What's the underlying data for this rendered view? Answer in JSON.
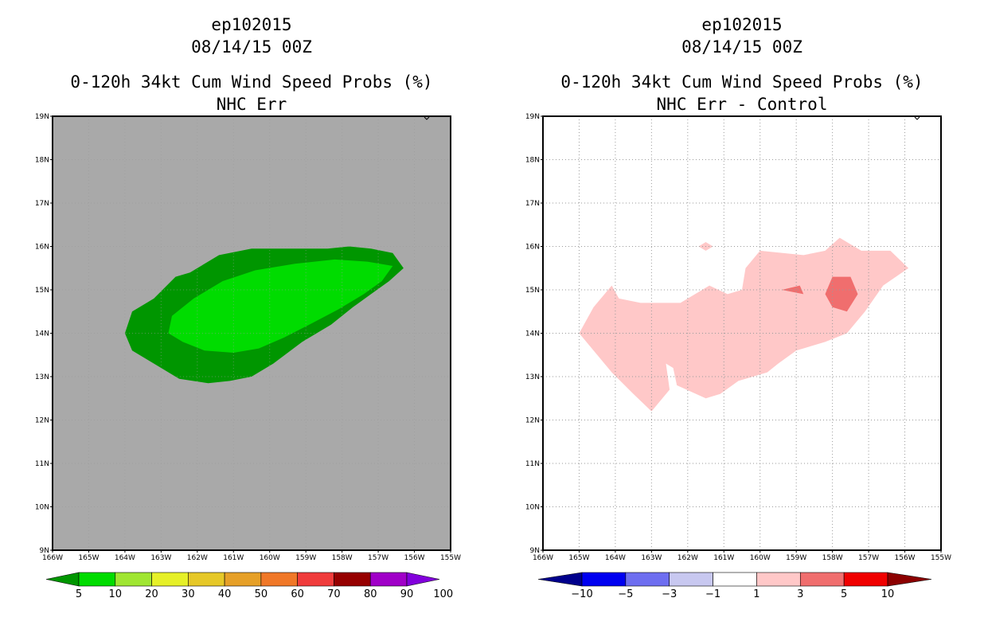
{
  "left_panel": {
    "storm_id": "ep102015",
    "datetime": "08/14/15 00Z",
    "title_line1": "0-120h 34kt Cum Wind Speed Probs (%)",
    "title_line2": "NHC Err"
  },
  "right_panel": {
    "storm_id": "ep102015",
    "datetime": "08/14/15 00Z",
    "title_line1": "0-120h 34kt Cum Wind Speed Probs (%)",
    "title_line2": "NHC Err - Control"
  },
  "chart_data": [
    {
      "type": "heatmap",
      "name": "NHC Err cumulative 34kt wind speed probability",
      "xlim": [
        -166,
        -155
      ],
      "ylim": [
        9,
        19
      ],
      "xticks": [
        "166W",
        "165W",
        "164W",
        "163W",
        "162W",
        "161W",
        "160W",
        "159W",
        "158W",
        "157W",
        "156W",
        "155W"
      ],
      "yticks": [
        "9N",
        "10N",
        "11N",
        "12N",
        "13N",
        "14N",
        "15N",
        "16N",
        "17N",
        "18N",
        "19N"
      ],
      "grid": false,
      "background_color": "#a9a9a9",
      "regions": [
        {
          "level": "5-10",
          "color": "#009600",
          "polygon": [
            [
              -163.2,
              14.8
            ],
            [
              -162.6,
              15.3
            ],
            [
              -162.2,
              15.4
            ],
            [
              -161.4,
              15.8
            ],
            [
              -160.5,
              15.95
            ],
            [
              -159.6,
              15.95
            ],
            [
              -158.4,
              15.95
            ],
            [
              -157.8,
              16.0
            ],
            [
              -157.2,
              15.95
            ],
            [
              -156.6,
              15.85
            ],
            [
              -156.3,
              15.5
            ],
            [
              -156.7,
              15.2
            ],
            [
              -157.2,
              14.9
            ],
            [
              -157.7,
              14.6
            ],
            [
              -158.3,
              14.2
            ],
            [
              -159.1,
              13.8
            ],
            [
              -159.9,
              13.3
            ],
            [
              -160.5,
              13.0
            ],
            [
              -161.1,
              12.9
            ],
            [
              -161.7,
              12.85
            ],
            [
              -162.5,
              12.95
            ],
            [
              -163.2,
              13.3
            ],
            [
              -163.8,
              13.6
            ],
            [
              -164.0,
              14.0
            ],
            [
              -163.8,
              14.5
            ]
          ]
        },
        {
          "level": "10-20",
          "color": "#00dc00",
          "polygon": [
            [
              -162.7,
              14.4
            ],
            [
              -162.1,
              14.8
            ],
            [
              -161.3,
              15.2
            ],
            [
              -160.4,
              15.45
            ],
            [
              -159.3,
              15.6
            ],
            [
              -158.2,
              15.7
            ],
            [
              -157.3,
              15.65
            ],
            [
              -156.6,
              15.55
            ],
            [
              -156.9,
              15.2
            ],
            [
              -157.4,
              14.9
            ],
            [
              -158.1,
              14.55
            ],
            [
              -158.9,
              14.2
            ],
            [
              -159.6,
              13.9
            ],
            [
              -160.3,
              13.65
            ],
            [
              -161.0,
              13.55
            ],
            [
              -161.8,
              13.6
            ],
            [
              -162.4,
              13.8
            ],
            [
              -162.8,
              14.0
            ]
          ]
        }
      ],
      "colorbar": {
        "colors": [
          "#009600",
          "#00dc00",
          "#a0e632",
          "#e6f028",
          "#e6c828",
          "#e6a028",
          "#f07828",
          "#f03c3c",
          "#960000",
          "#a000c8",
          "#8200dc"
        ],
        "labels": [
          "5",
          "10",
          "20",
          "30",
          "40",
          "50",
          "60",
          "70",
          "80",
          "90",
          "100"
        ]
      }
    },
    {
      "type": "heatmap",
      "name": "NHC Err minus Control difference",
      "xlim": [
        -166,
        -155
      ],
      "ylim": [
        9,
        19
      ],
      "xticks": [
        "166W",
        "165W",
        "164W",
        "163W",
        "162W",
        "161W",
        "160W",
        "159W",
        "158W",
        "157W",
        "156W",
        "155W"
      ],
      "yticks": [
        "9N",
        "10N",
        "11N",
        "12N",
        "13N",
        "14N",
        "15N",
        "16N",
        "17N",
        "18N",
        "19N"
      ],
      "grid": true,
      "background_color": "#ffffff",
      "regions": [
        {
          "level": "1-3",
          "color": "#ffc8c8",
          "polygon": [
            [
              -165.0,
              14.0
            ],
            [
              -164.6,
              14.6
            ],
            [
              -164.2,
              15.0
            ],
            [
              -164.1,
              15.1
            ],
            [
              -163.9,
              14.8
            ],
            [
              -163.3,
              14.7
            ],
            [
              -162.2,
              14.7
            ],
            [
              -161.4,
              15.1
            ],
            [
              -160.9,
              14.9
            ],
            [
              -160.5,
              15.0
            ],
            [
              -160.4,
              15.5
            ],
            [
              -160.0,
              15.9
            ],
            [
              -158.8,
              15.8
            ],
            [
              -158.2,
              15.9
            ],
            [
              -157.8,
              16.2
            ],
            [
              -157.2,
              15.9
            ],
            [
              -156.4,
              15.9
            ],
            [
              -155.9,
              15.5
            ],
            [
              -156.6,
              15.1
            ],
            [
              -157.1,
              14.5
            ],
            [
              -157.6,
              14.0
            ],
            [
              -158.2,
              13.8
            ],
            [
              -159.0,
              13.6
            ],
            [
              -159.5,
              13.3
            ],
            [
              -159.8,
              13.1
            ],
            [
              -160.6,
              12.9
            ],
            [
              -161.1,
              12.6
            ],
            [
              -161.5,
              12.5
            ],
            [
              -162.3,
              12.8
            ],
            [
              -162.4,
              13.2
            ],
            [
              -162.6,
              13.3
            ],
            [
              -162.5,
              12.7
            ],
            [
              -163.0,
              12.2
            ],
            [
              -163.5,
              12.6
            ],
            [
              -164.1,
              13.1
            ],
            [
              -164.6,
              13.6
            ]
          ]
        },
        {
          "level": "1-3",
          "color": "#ffc8c8",
          "polygon": [
            [
              -161.7,
              16.0
            ],
            [
              -161.5,
              16.1
            ],
            [
              -161.3,
              16.0
            ],
            [
              -161.5,
              15.9
            ]
          ]
        },
        {
          "level": "3-5",
          "color": "#f06e6e",
          "polygon": [
            [
              -158.0,
              15.3
            ],
            [
              -157.5,
              15.3
            ],
            [
              -157.3,
              14.9
            ],
            [
              -157.6,
              14.5
            ],
            [
              -158.0,
              14.6
            ],
            [
              -158.2,
              14.9
            ]
          ]
        },
        {
          "level": "3-5",
          "color": "#f06e6e",
          "polygon": [
            [
              -159.4,
              15.0
            ],
            [
              -158.9,
              15.1
            ],
            [
              -158.8,
              14.9
            ]
          ]
        }
      ],
      "colorbar": {
        "colors": [
          "#00008c",
          "#0000f0",
          "#6e6ef0",
          "#c8c8f0",
          "#ffffff",
          "#ffc8c8",
          "#f06e6e",
          "#f00000",
          "#8c0000"
        ],
        "labels": [
          "-10",
          "-5",
          "-3",
          "-1",
          "1",
          "3",
          "5",
          "10"
        ]
      }
    }
  ]
}
